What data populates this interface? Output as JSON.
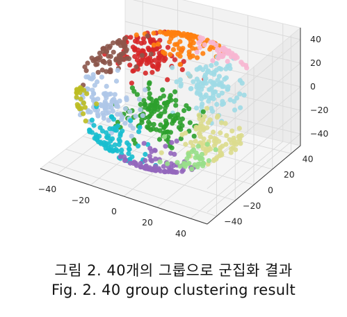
{
  "chart_data": {
    "type": "scatter",
    "projection": "3d",
    "x_ticks": [
      "−40",
      "−20",
      "0",
      "20",
      "40"
    ],
    "y_ticks": [
      "40",
      "20",
      "0",
      "−20",
      "−40"
    ],
    "z_ticks": [
      "40",
      "20",
      "0",
      "−20",
      "−40"
    ],
    "xlim": [
      -50,
      50
    ],
    "ylim": [
      -50,
      50
    ],
    "zlim": [
      -50,
      50
    ],
    "grid": true,
    "legend": "none",
    "cluster_colors": [
      "#1f77b4",
      "#ff7f0e",
      "#2ca02c",
      "#d62728",
      "#9467bd",
      "#8c564b",
      "#e377c2",
      "#7f7f7f",
      "#bcbd22",
      "#17becf",
      "#aec7e8",
      "#ffbb78",
      "#98df8a",
      "#ff9896",
      "#c5b0d5",
      "#c49c94",
      "#f7b6d2",
      "#c7c7c7",
      "#dbdb8d",
      "#9edae5"
    ],
    "clusters": [
      {
        "color": "#d62728",
        "center": [
          -20,
          -15,
          25
        ],
        "count": 110
      },
      {
        "color": "#ff7f0e",
        "center": [
          -5,
          -28,
          38
        ],
        "count": 90
      },
      {
        "color": "#8c564b",
        "center": [
          -38,
          -8,
          20
        ],
        "count": 70
      },
      {
        "color": "#9edae5",
        "center": [
          28,
          5,
          28
        ],
        "count": 110
      },
      {
        "color": "#f7b6d2",
        "center": [
          25,
          -30,
          42
        ],
        "count": 45
      },
      {
        "color": "#2ca02c",
        "center": [
          0,
          12,
          -5
        ],
        "count": 130
      },
      {
        "color": "#dbdb8d",
        "center": [
          35,
          18,
          -8
        ],
        "count": 90
      },
      {
        "color": "#aec7e8",
        "center": [
          -35,
          5,
          -12
        ],
        "count": 100
      },
      {
        "color": "#17becf",
        "center": [
          -22,
          25,
          -30
        ],
        "count": 80
      },
      {
        "color": "#9467bd",
        "center": [
          10,
          30,
          -35
        ],
        "count": 80
      },
      {
        "color": "#98df8a",
        "center": [
          38,
          38,
          -20
        ],
        "count": 35
      },
      {
        "color": "#bcbd22",
        "center": [
          -42,
          30,
          2
        ],
        "count": 25
      }
    ]
  },
  "caption": {
    "korean": "그림 2. 40개의 그룹으로 군집화 결과",
    "english": "Fig. 2. 40 group clustering result"
  }
}
